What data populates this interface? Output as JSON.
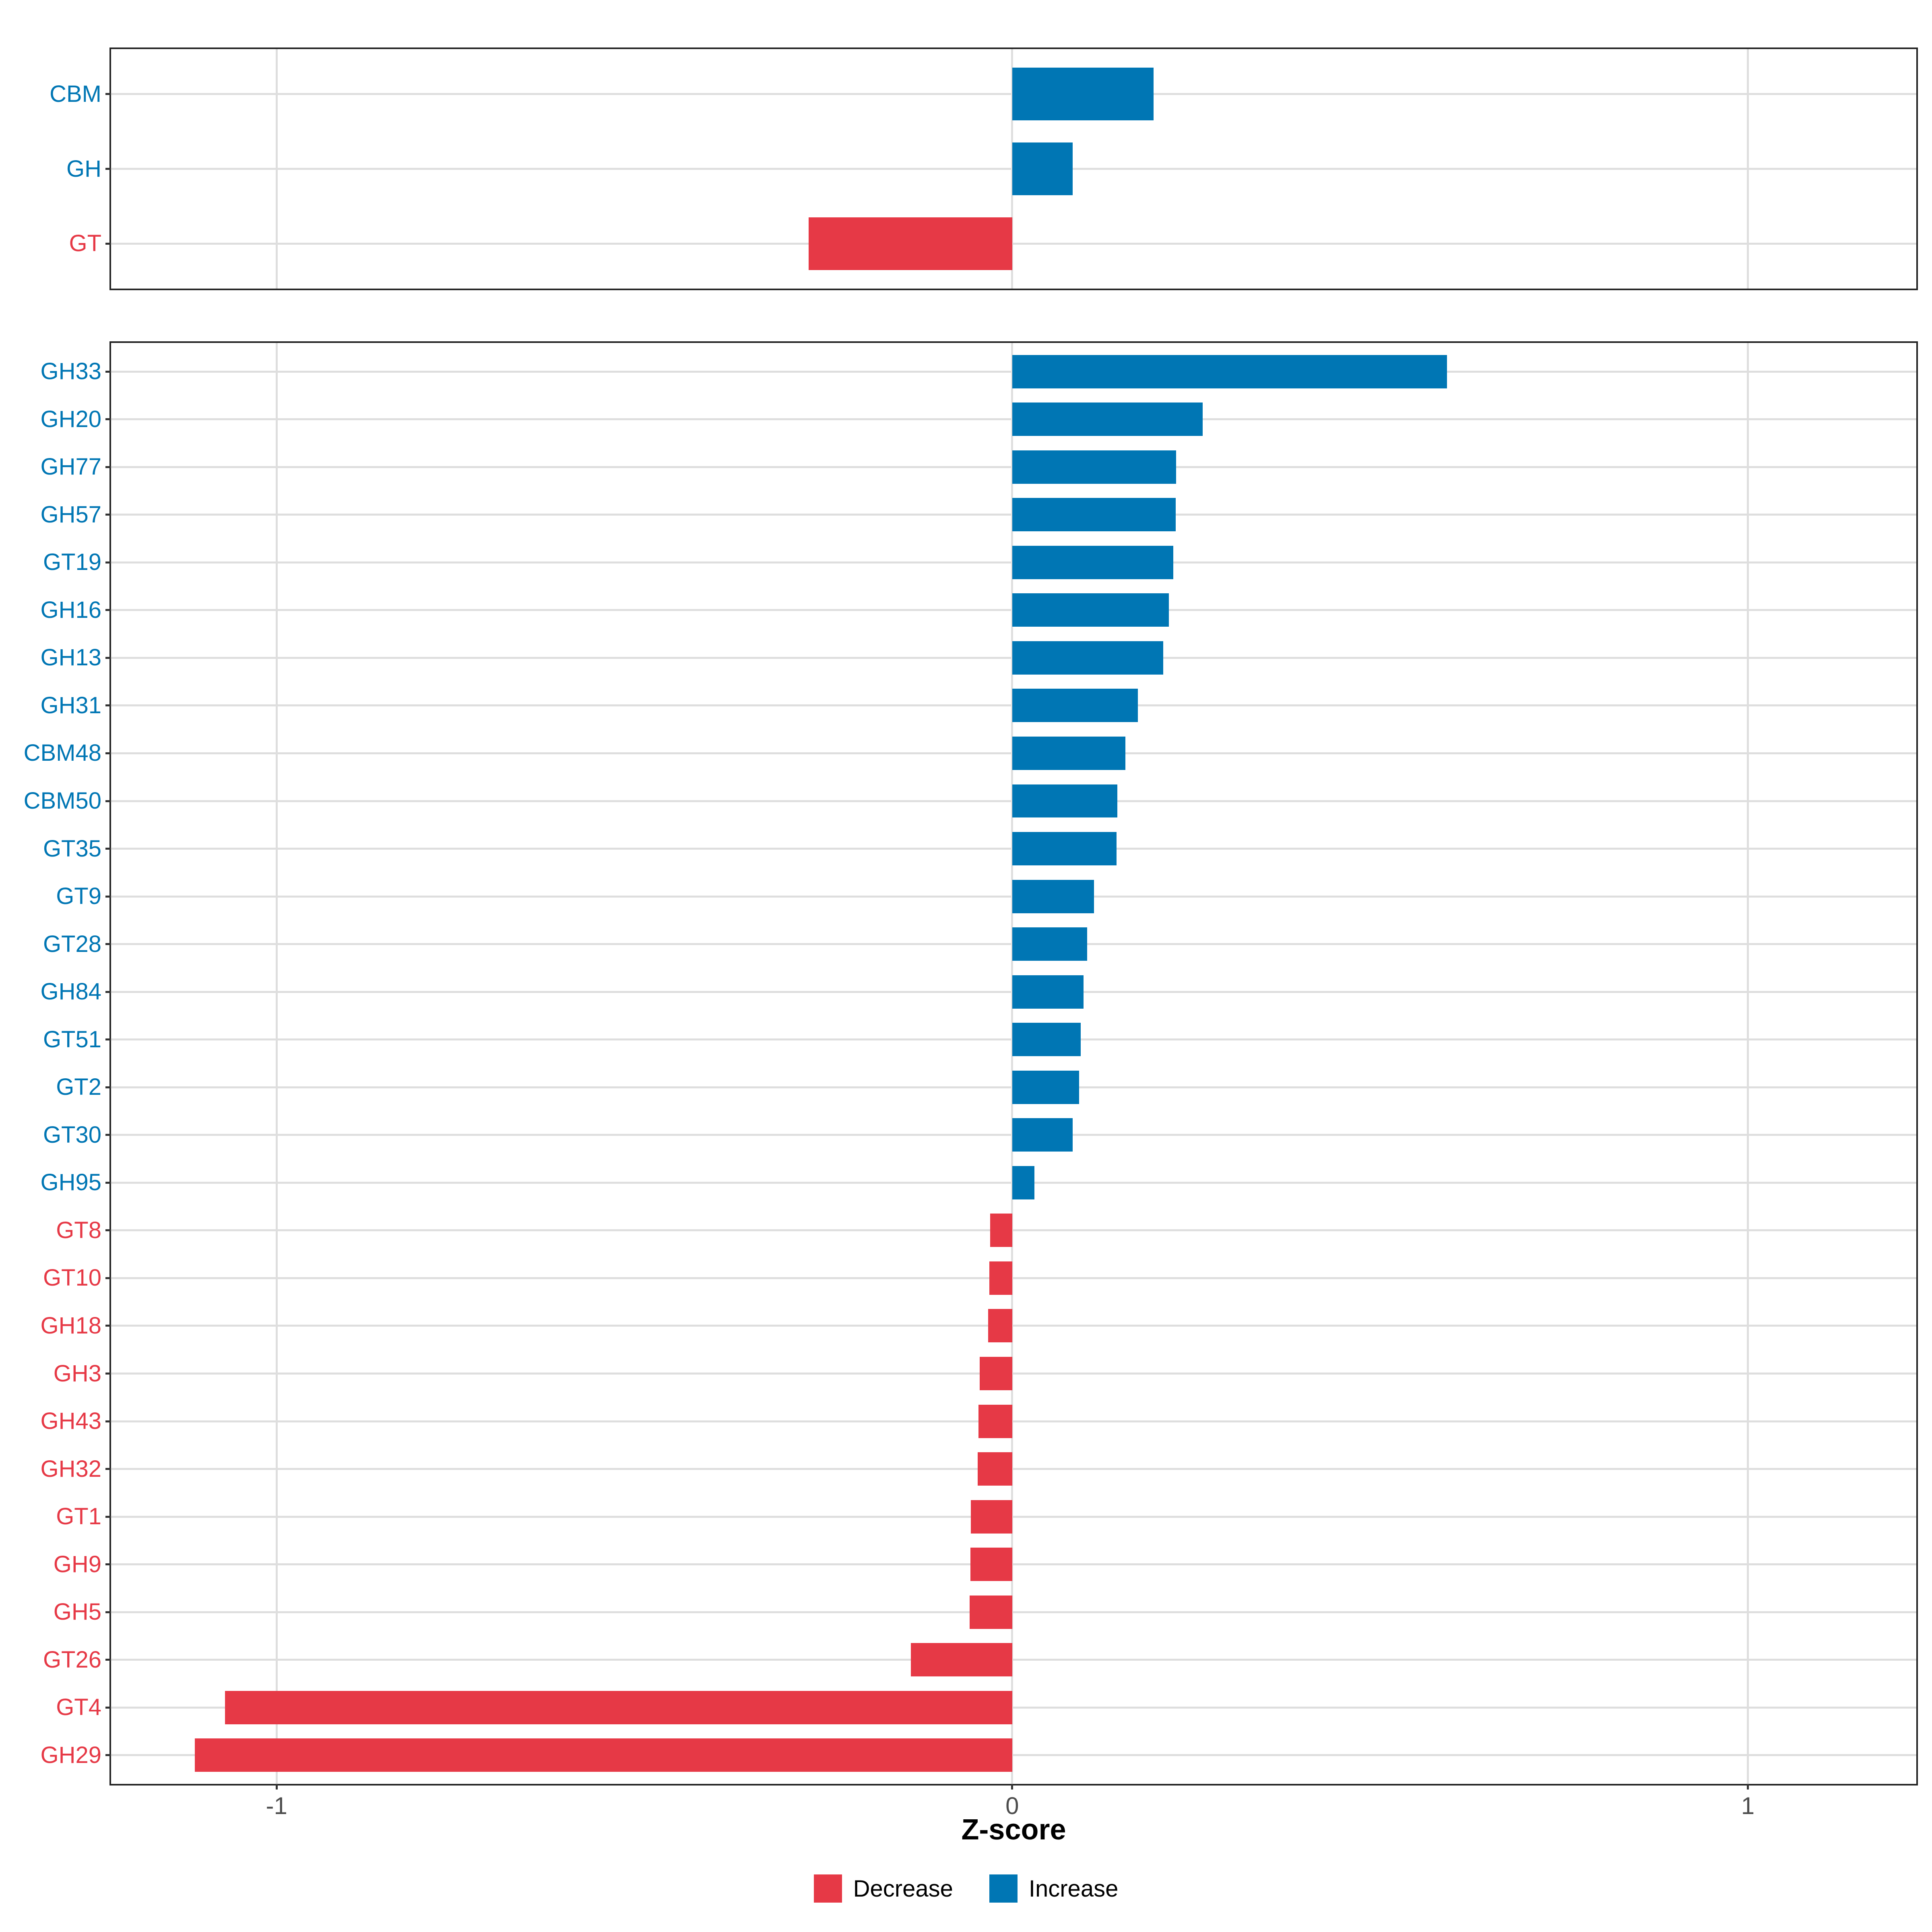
{
  "colors": {
    "increase": "#0076B4",
    "decrease": "#E63946",
    "grid": "#DEDEDE",
    "panel_border": "#222222",
    "tick_mark": "#333333",
    "tick_text": "#4D4D4D",
    "axis_title_text": "#000000",
    "background": "#FFFFFF"
  },
  "x_axis": {
    "title": "Z-score",
    "ticks": [
      -1,
      0,
      1
    ],
    "tick_labels": [
      "-1",
      "0",
      "1"
    ],
    "range": [
      -1.225,
      1.229
    ]
  },
  "legend": {
    "items": [
      {
        "label": "Decrease",
        "direction": "decrease"
      },
      {
        "label": "Increase",
        "direction": "increase"
      }
    ]
  },
  "chart_data": [
    {
      "type": "bar",
      "panel": "top",
      "orientation": "horizontal",
      "xlabel": "Z-score",
      "xlim": [
        -1.225,
        1.229
      ],
      "grid": true,
      "categories": [
        "CBM",
        "GH",
        "GT"
      ],
      "values": [
        0.192,
        0.082,
        -0.277
      ],
      "directions": [
        "increase",
        "increase",
        "decrease"
      ]
    },
    {
      "type": "bar",
      "panel": "bottom",
      "orientation": "horizontal",
      "xlabel": "Z-score",
      "xlim": [
        -1.225,
        1.229
      ],
      "grid": true,
      "categories": [
        "GH33",
        "GH20",
        "GH77",
        "GH57",
        "GT19",
        "GH16",
        "GH13",
        "GH31",
        "CBM48",
        "CBM50",
        "GT35",
        "GT9",
        "GT28",
        "GH84",
        "GT51",
        "GT2",
        "GT30",
        "GH95",
        "GT8",
        "GT10",
        "GH18",
        "GH3",
        "GH43",
        "GH32",
        "GT1",
        "GH9",
        "GH5",
        "GT26",
        "GT4",
        "GH29"
      ],
      "values": [
        0.591,
        0.259,
        0.223,
        0.222,
        0.219,
        0.213,
        0.205,
        0.171,
        0.154,
        0.143,
        0.142,
        0.111,
        0.102,
        0.097,
        0.093,
        0.091,
        0.082,
        0.03,
        -0.03,
        -0.031,
        -0.033,
        -0.044,
        -0.046,
        -0.047,
        -0.056,
        -0.057,
        -0.058,
        -0.138,
        -1.07,
        -1.111
      ],
      "directions": [
        "increase",
        "increase",
        "increase",
        "increase",
        "increase",
        "increase",
        "increase",
        "increase",
        "increase",
        "increase",
        "increase",
        "increase",
        "increase",
        "increase",
        "increase",
        "increase",
        "increase",
        "increase",
        "decrease",
        "decrease",
        "decrease",
        "decrease",
        "decrease",
        "decrease",
        "decrease",
        "decrease",
        "decrease",
        "decrease",
        "decrease",
        "decrease"
      ]
    }
  ]
}
